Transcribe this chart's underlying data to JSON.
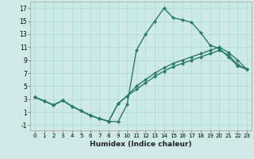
{
  "xlabel": "Humidex (Indice chaleur)",
  "xlim": [
    -0.5,
    23.5
  ],
  "ylim": [
    -1.8,
    18
  ],
  "xticks": [
    0,
    1,
    2,
    3,
    4,
    5,
    6,
    7,
    8,
    9,
    10,
    11,
    12,
    13,
    14,
    15,
    16,
    17,
    18,
    19,
    20,
    21,
    22,
    23
  ],
  "yticks": [
    -1,
    1,
    3,
    5,
    7,
    9,
    11,
    13,
    15,
    17
  ],
  "line_color": "#2a7a6a",
  "bg_color": "#ceeae6",
  "grid_color": "#b8d8d4",
  "line1_x": [
    0,
    1,
    2,
    3,
    4,
    5,
    6,
    7,
    8,
    9,
    10,
    11,
    12,
    13,
    14,
    15,
    16,
    17,
    18,
    19,
    20,
    21,
    22,
    23
  ],
  "line1_y": [
    3.3,
    2.7,
    2.1,
    2.8,
    1.9,
    1.2,
    0.5,
    0.0,
    -0.4,
    -0.5,
    2.2,
    10.5,
    13.0,
    15.0,
    17.0,
    15.5,
    15.2,
    14.8,
    13.2,
    11.3,
    10.8,
    9.5,
    8.1,
    7.6
  ],
  "line2_x": [
    0,
    1,
    2,
    3,
    4,
    5,
    6,
    7,
    8,
    9,
    10,
    11,
    12,
    13,
    14,
    15,
    16,
    17,
    18,
    19,
    20,
    21,
    22,
    23
  ],
  "line2_y": [
    3.3,
    2.7,
    2.1,
    2.8,
    1.9,
    1.2,
    0.5,
    0.0,
    -0.4,
    2.3,
    3.5,
    5.0,
    6.0,
    7.0,
    7.8,
    8.5,
    9.0,
    9.5,
    10.0,
    10.5,
    11.0,
    10.2,
    9.0,
    7.6
  ],
  "line3_x": [
    0,
    1,
    2,
    3,
    4,
    5,
    6,
    7,
    8,
    9,
    10,
    11,
    12,
    13,
    14,
    15,
    16,
    17,
    18,
    19,
    20,
    21,
    22,
    23
  ],
  "line3_y": [
    3.3,
    2.7,
    2.1,
    2.8,
    1.9,
    1.2,
    0.5,
    0.0,
    -0.4,
    2.3,
    3.5,
    4.5,
    5.5,
    6.5,
    7.3,
    8.0,
    8.5,
    9.0,
    9.5,
    10.0,
    10.5,
    9.8,
    8.3,
    7.6
  ],
  "marker": "D",
  "markersize": 2.5,
  "linewidth": 1.0
}
